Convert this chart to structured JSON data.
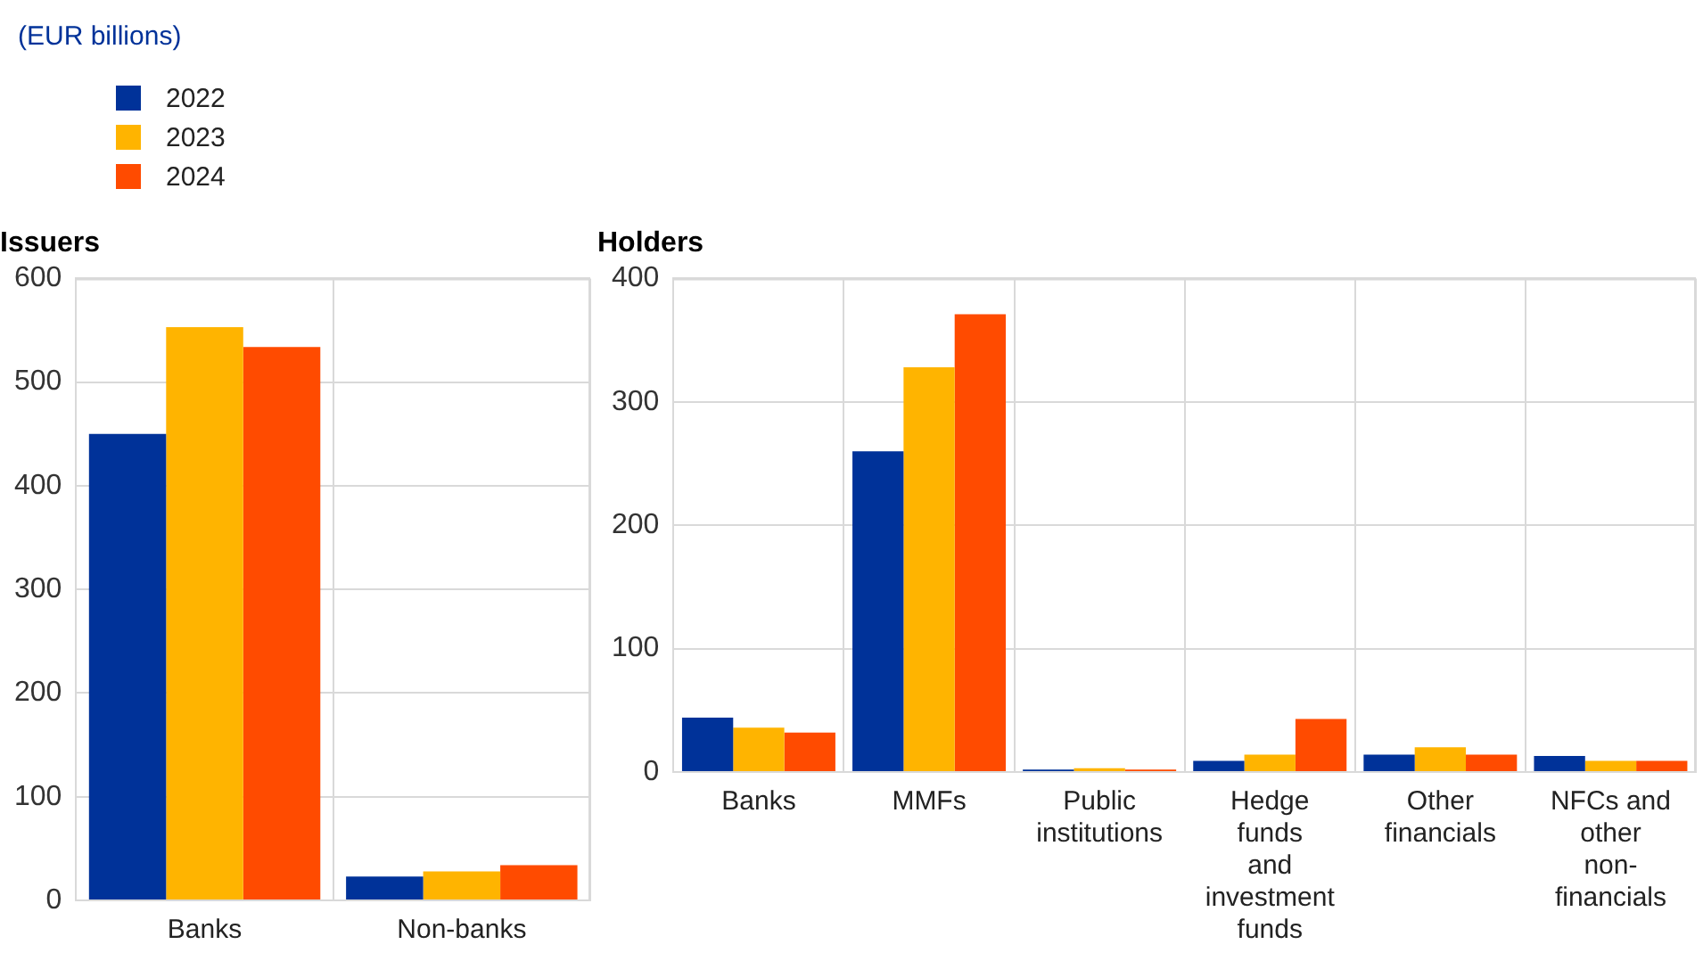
{
  "chart_data": [
    {
      "type": "bar",
      "title": "Issuers",
      "ylabel": "(EUR billions)",
      "categories": [
        "Banks",
        "Non-banks"
      ],
      "legend": "top left",
      "grid": true,
      "series": [
        {
          "name": "2022",
          "color": "#003299",
          "values": [
            450,
            23
          ]
        },
        {
          "name": "2023",
          "color": "#ffb400",
          "values": [
            553,
            28
          ]
        },
        {
          "name": "2024",
          "color": "#ff4b00",
          "values": [
            534,
            34
          ]
        }
      ],
      "ylim": [
        0,
        600
      ],
      "yticks": [
        0,
        100,
        200,
        300,
        400,
        500,
        600
      ]
    },
    {
      "type": "bar",
      "title": "Holders",
      "categories": [
        "Banks",
        "MMFs",
        "Public institutions",
        "Hedge funds and investment funds",
        "Other financials",
        "NFCs and other non-financials"
      ],
      "grid": true,
      "series": [
        {
          "color": "#003299",
          "values": [
            44,
            260,
            2,
            9,
            14,
            13
          ]
        },
        {
          "color": "#ffb400",
          "values": [
            36,
            328,
            3,
            14,
            20,
            9
          ]
        },
        {
          "color": "#ff4b00",
          "values": [
            32,
            371,
            2,
            43,
            14,
            9
          ]
        }
      ],
      "ylim": [
        0,
        400
      ],
      "yticks": [
        0,
        100,
        200,
        300,
        400
      ]
    }
  ]
}
